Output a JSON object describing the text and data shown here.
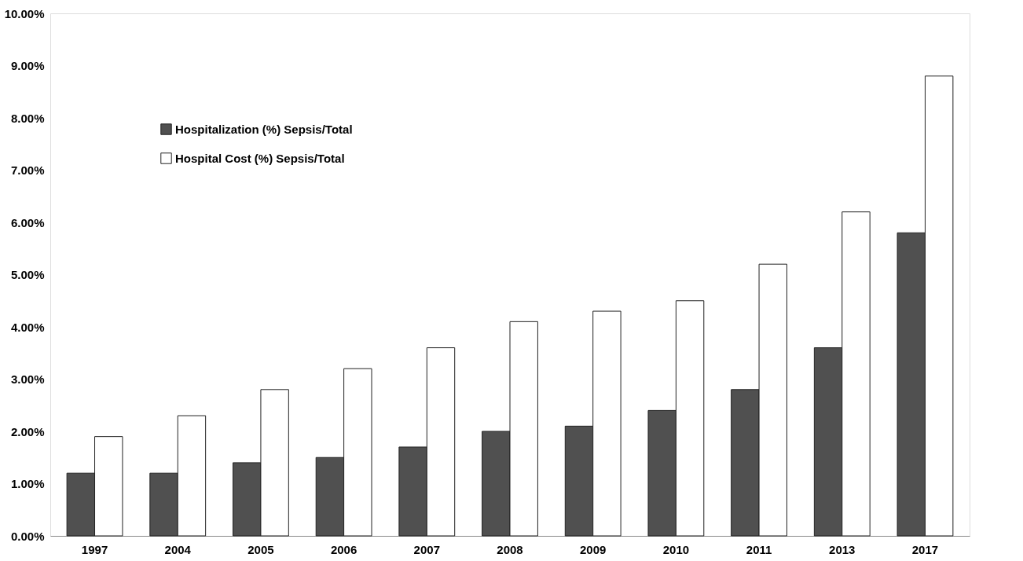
{
  "chart_data": {
    "type": "bar",
    "categories": [
      "1997",
      "2004",
      "2005",
      "2006",
      "2007",
      "2008",
      "2009",
      "2010",
      "2011",
      "2013",
      "2017"
    ],
    "series": [
      {
        "name": "Hospitalization (%) Sepsis/Total",
        "color": "#505050",
        "values": [
          1.2,
          1.2,
          1.4,
          1.5,
          1.7,
          2.0,
          2.1,
          2.4,
          2.8,
          3.6,
          5.8
        ]
      },
      {
        "name": "Hospital Cost (%) Sepsis/Total",
        "color": "#ffffff",
        "values": [
          1.9,
          2.3,
          2.8,
          3.2,
          3.6,
          4.1,
          4.3,
          4.5,
          5.2,
          6.2,
          8.8
        ]
      }
    ],
    "ylim": [
      0,
      10
    ],
    "yticks": [
      {
        "value": 0,
        "label": "0.00%"
      },
      {
        "value": 1,
        "label": "1.00%"
      },
      {
        "value": 2,
        "label": "2.00%"
      },
      {
        "value": 3,
        "label": "3.00%"
      },
      {
        "value": 4,
        "label": "4.00%"
      },
      {
        "value": 5,
        "label": "5.00%"
      },
      {
        "value": 6,
        "label": "6.00%"
      },
      {
        "value": 7,
        "label": "7.00%"
      },
      {
        "value": 8,
        "label": "8.00%"
      },
      {
        "value": 9,
        "label": "9.00%"
      },
      {
        "value": 10,
        "label": "10.00%"
      }
    ],
    "grid": false,
    "legend": "top left"
  }
}
